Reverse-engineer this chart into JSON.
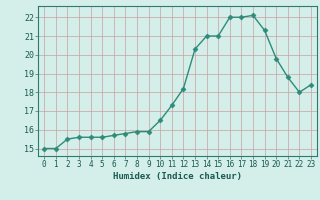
{
  "title": "",
  "xlabel": "Humidex (Indice chaleur)",
  "ylabel": "",
  "x_values": [
    0,
    1,
    2,
    3,
    4,
    5,
    6,
    7,
    8,
    9,
    10,
    11,
    12,
    13,
    14,
    15,
    16,
    17,
    18,
    19,
    20,
    21,
    22,
    23
  ],
  "y_values": [
    15.0,
    15.0,
    15.5,
    15.6,
    15.6,
    15.6,
    15.7,
    15.8,
    15.9,
    15.9,
    16.5,
    17.3,
    18.2,
    20.3,
    21.0,
    21.0,
    22.0,
    22.0,
    22.1,
    21.3,
    19.8,
    18.8,
    18.0,
    18.4
  ],
  "ylim": [
    14.6,
    22.6
  ],
  "yticks": [
    15,
    16,
    17,
    18,
    19,
    20,
    21,
    22
  ],
  "xticks": [
    0,
    1,
    2,
    3,
    4,
    5,
    6,
    7,
    8,
    9,
    10,
    11,
    12,
    13,
    14,
    15,
    16,
    17,
    18,
    19,
    20,
    21,
    22,
    23
  ],
  "line_color": "#2e8b7a",
  "marker_color": "#2e8b7a",
  "bg_color": "#d4eeea",
  "grid_color_h": "#c8a0a0",
  "grid_color_v": "#c8a0a0",
  "spine_color": "#2e7a6e",
  "font_color": "#1a5a50",
  "xlabel_fontsize": 6.5,
  "tick_fontsize": 5.5,
  "linewidth": 1.0,
  "markersize": 2.5,
  "figwidth": 3.2,
  "figheight": 2.0,
  "dpi": 100
}
